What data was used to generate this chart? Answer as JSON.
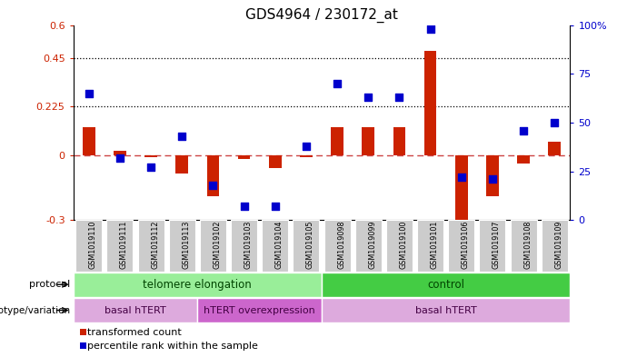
{
  "title": "GDS4964 / 230172_at",
  "samples": [
    "GSM1019110",
    "GSM1019111",
    "GSM1019112",
    "GSM1019113",
    "GSM1019102",
    "GSM1019103",
    "GSM1019104",
    "GSM1019105",
    "GSM1019098",
    "GSM1019099",
    "GSM1019100",
    "GSM1019101",
    "GSM1019106",
    "GSM1019107",
    "GSM1019108",
    "GSM1019109"
  ],
  "red_values": [
    0.13,
    0.02,
    -0.01,
    -0.085,
    -0.19,
    -0.02,
    -0.06,
    -0.01,
    0.13,
    0.13,
    0.13,
    0.48,
    -0.32,
    -0.19,
    -0.04,
    0.06
  ],
  "blue_pct": [
    65,
    32,
    27,
    43,
    18,
    7,
    7,
    38,
    70,
    63,
    63,
    98,
    22,
    21,
    46,
    50
  ],
  "ylim_left": [
    -0.3,
    0.6
  ],
  "ylim_right": [
    0,
    100
  ],
  "yticks_left": [
    -0.3,
    0.0,
    0.225,
    0.45,
    0.6
  ],
  "yticks_right": [
    0,
    25,
    50,
    75,
    100
  ],
  "hlines": [
    0.225,
    0.45
  ],
  "protocol_groups": [
    {
      "label": "telomere elongation",
      "start": 0,
      "end": 7,
      "color": "#99EE99"
    },
    {
      "label": "control",
      "start": 8,
      "end": 15,
      "color": "#44CC44"
    }
  ],
  "genotype_groups": [
    {
      "label": "basal hTERT",
      "start": 0,
      "end": 3,
      "color": "#DDAADD"
    },
    {
      "label": "hTERT overexpression",
      "start": 4,
      "end": 7,
      "color": "#CC66CC"
    },
    {
      "label": "basal hTERT",
      "start": 8,
      "end": 15,
      "color": "#DDAADD"
    }
  ],
  "legend_items": [
    {
      "color": "#CC2200",
      "label": "transformed count"
    },
    {
      "color": "#0000CC",
      "label": "percentile rank within the sample"
    }
  ],
  "bar_color": "#CC2200",
  "dot_color": "#0000CC",
  "zero_line_color": "#CC4444",
  "grid_color": "#333333",
  "right_axis_color": "#0000CC",
  "left_axis_color": "#CC2200",
  "sample_box_color": "#CCCCCC"
}
